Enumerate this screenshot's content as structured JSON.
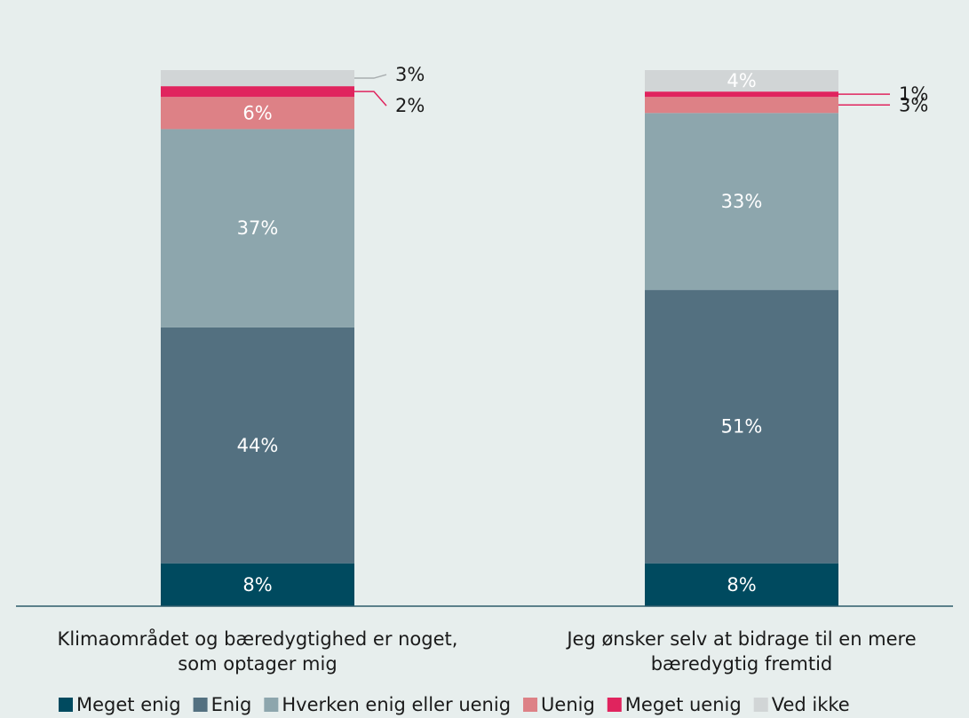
{
  "chart_data": {
    "type": "bar",
    "stacked": true,
    "title": "",
    "xlabel": "",
    "ylabel": "",
    "ylim": [
      0,
      100
    ],
    "grid": false,
    "legend_position": "bottom",
    "categories": [
      [
        "Klimaområdet og bæredygtighed er noget,",
        "som optager mig"
      ],
      [
        "Jeg ønsker selv at bidrage til en mere",
        "bæredygtig fremtid"
      ]
    ],
    "series": [
      {
        "name": "Meget enig",
        "color": "#004a5f",
        "values": [
          8,
          8
        ],
        "labels": [
          "8%",
          "8%"
        ]
      },
      {
        "name": "Enig",
        "color": "#537080",
        "values": [
          44,
          51
        ],
        "labels": [
          "44%",
          "51%"
        ]
      },
      {
        "name": "Hverken enig eller uenig",
        "color": "#8da6ad",
        "values": [
          37,
          33
        ],
        "labels": [
          "37%",
          "33%"
        ]
      },
      {
        "name": "Uenig",
        "color": "#dd8186",
        "values": [
          6,
          3
        ],
        "labels": [
          "6%",
          "3%"
        ]
      },
      {
        "name": "Meget uenig",
        "color": "#e0245e",
        "values": [
          2,
          1
        ],
        "labels": [
          "2%",
          "1%"
        ]
      },
      {
        "name": "Ved ikke",
        "color": "#d1d5d6",
        "values": [
          3,
          4
        ],
        "labels": [
          "3%",
          "4%"
        ]
      }
    ]
  }
}
